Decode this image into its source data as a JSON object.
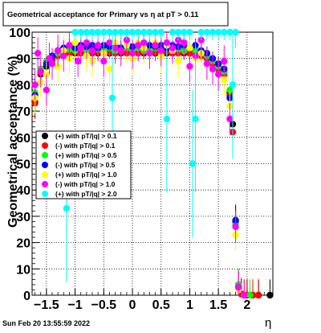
{
  "chart_data": {
    "type": "scatter",
    "title": "Geometrical acceptance for Primary vs  η at pT > 0.11",
    "xlabel": "η",
    "ylabel": "Geometrical acceptance (%)",
    "xlim": [
      -1.75,
      2.45
    ],
    "ylim": [
      0,
      100
    ],
    "x_ticks": [
      -1.5,
      -1,
      -0.5,
      0,
      0.5,
      1,
      1.5,
      2
    ],
    "x_tick_labels": [
      "−1.5",
      "−1",
      "−0.5",
      "0",
      "0.5",
      "1",
      "1.5",
      "2"
    ],
    "y_ticks": [
      0,
      10,
      20,
      30,
      40,
      50,
      60,
      70,
      80,
      90,
      100
    ],
    "y_tick_labels": [
      "0",
      "10",
      "20",
      "30",
      "40",
      "50",
      "60",
      "70",
      "80",
      "90",
      "100"
    ],
    "grid": true,
    "legend_position": "middle-left",
    "timestamp": "Sun Feb 20 13:55:59 2022",
    "series": [
      {
        "name": "(+) with pT/|q| > 0.1",
        "color": "#000000",
        "points": [
          [
            -1.7,
            73.5
          ],
          [
            -1.6,
            84
          ],
          [
            -1.5,
            87
          ],
          [
            -1.4,
            89.5
          ],
          [
            -1.3,
            91
          ],
          [
            -1.2,
            91.5
          ],
          [
            -1.1,
            92
          ],
          [
            -1.0,
            92
          ],
          [
            -0.9,
            92.5
          ],
          [
            -0.8,
            92
          ],
          [
            -0.7,
            92.5
          ],
          [
            -0.6,
            92
          ],
          [
            -0.5,
            92.5
          ],
          [
            -0.4,
            92
          ],
          [
            -0.3,
            92.5
          ],
          [
            -0.2,
            92
          ],
          [
            -0.1,
            92.5
          ],
          [
            0.0,
            92
          ],
          [
            0.1,
            92.5
          ],
          [
            0.2,
            92
          ],
          [
            0.3,
            92.5
          ],
          [
            0.4,
            92
          ],
          [
            0.5,
            92.5
          ],
          [
            0.6,
            92
          ],
          [
            0.7,
            92
          ],
          [
            0.8,
            92.5
          ],
          [
            0.9,
            92
          ],
          [
            1.0,
            92
          ],
          [
            1.1,
            92
          ],
          [
            1.2,
            91.5
          ],
          [
            1.3,
            91
          ],
          [
            1.4,
            89
          ],
          [
            1.5,
            87
          ],
          [
            1.6,
            85
          ],
          [
            1.7,
            77
          ],
          [
            1.75,
            65
          ],
          [
            1.8,
            28
          ],
          [
            1.85,
            4
          ],
          [
            1.9,
            0.5
          ],
          [
            2.0,
            0
          ],
          [
            2.1,
            0
          ],
          [
            2.2,
            0
          ],
          [
            2.4,
            0
          ]
        ]
      },
      {
        "name": "(-) with pT/|q| > 0.1",
        "color": "#ff0000",
        "points": [
          [
            -1.7,
            73
          ],
          [
            -1.6,
            84.5
          ],
          [
            -1.5,
            88
          ],
          [
            -1.4,
            90
          ],
          [
            -1.3,
            91
          ],
          [
            -1.2,
            92
          ],
          [
            -1.1,
            92
          ],
          [
            -1.0,
            92.5
          ],
          [
            -0.9,
            92
          ],
          [
            -0.8,
            92.5
          ],
          [
            -0.7,
            92
          ],
          [
            -0.6,
            92.5
          ],
          [
            -0.5,
            92
          ],
          [
            -0.4,
            92.5
          ],
          [
            -0.3,
            92
          ],
          [
            -0.2,
            92.5
          ],
          [
            -0.1,
            92
          ],
          [
            0.0,
            92.5
          ],
          [
            0.1,
            92
          ],
          [
            0.2,
            92.5
          ],
          [
            0.3,
            92
          ],
          [
            0.4,
            92.5
          ],
          [
            0.5,
            92
          ],
          [
            0.6,
            92.5
          ],
          [
            0.7,
            92
          ],
          [
            0.8,
            92
          ],
          [
            0.9,
            92.5
          ],
          [
            1.0,
            92
          ],
          [
            1.1,
            91.5
          ],
          [
            1.2,
            91
          ],
          [
            1.3,
            90
          ],
          [
            1.4,
            88
          ],
          [
            1.5,
            86
          ],
          [
            1.6,
            84
          ],
          [
            1.7,
            76
          ],
          [
            1.75,
            62
          ],
          [
            1.8,
            27
          ],
          [
            1.85,
            3.5
          ],
          [
            1.9,
            0.4
          ],
          [
            2.0,
            0
          ],
          [
            2.1,
            0
          ],
          [
            2.2,
            0
          ]
        ]
      },
      {
        "name": "(+) with pT/|q| > 0.5",
        "color": "#00ff00",
        "points": [
          [
            -1.7,
            77
          ],
          [
            -1.6,
            86
          ],
          [
            -1.5,
            89
          ],
          [
            -1.4,
            91
          ],
          [
            -1.3,
            92
          ],
          [
            -1.2,
            93
          ],
          [
            -1.1,
            93.5
          ],
          [
            -1.0,
            93
          ],
          [
            -0.9,
            94
          ],
          [
            -0.8,
            93
          ],
          [
            -0.7,
            94
          ],
          [
            -0.6,
            93.5
          ],
          [
            -0.5,
            93
          ],
          [
            -0.4,
            94
          ],
          [
            -0.3,
            93
          ],
          [
            -0.2,
            93.5
          ],
          [
            -0.1,
            94
          ],
          [
            0.0,
            93
          ],
          [
            0.1,
            94
          ],
          [
            0.2,
            93
          ],
          [
            0.3,
            93.5
          ],
          [
            0.4,
            94
          ],
          [
            0.5,
            93
          ],
          [
            0.6,
            94
          ],
          [
            0.7,
            93
          ],
          [
            0.8,
            93.5
          ],
          [
            0.9,
            93
          ],
          [
            1.0,
            94
          ],
          [
            1.1,
            93
          ],
          [
            1.2,
            92.5
          ],
          [
            1.3,
            91
          ],
          [
            1.4,
            89
          ],
          [
            1.5,
            87
          ],
          [
            1.6,
            85
          ],
          [
            1.7,
            78
          ],
          [
            1.8,
            27
          ],
          [
            1.85,
            4
          ],
          [
            1.95,
            0
          ],
          [
            2.05,
            0
          ]
        ]
      },
      {
        "name": "(-) with pT/|q| > 0.5",
        "color": "#0000ff",
        "points": [
          [
            -1.7,
            76
          ],
          [
            -1.6,
            85
          ],
          [
            -1.5,
            88
          ],
          [
            -1.4,
            91
          ],
          [
            -1.3,
            93
          ],
          [
            -1.2,
            94
          ],
          [
            -1.1,
            95
          ],
          [
            -1.0,
            94
          ],
          [
            -0.9,
            95
          ],
          [
            -0.8,
            94.5
          ],
          [
            -0.7,
            95
          ],
          [
            -0.6,
            94
          ],
          [
            -0.5,
            95
          ],
          [
            -0.4,
            94.5
          ],
          [
            -0.3,
            95
          ],
          [
            -0.2,
            94
          ],
          [
            -0.1,
            95
          ],
          [
            0.0,
            94.5
          ],
          [
            0.1,
            95
          ],
          [
            0.2,
            94
          ],
          [
            0.3,
            95
          ],
          [
            0.4,
            94.5
          ],
          [
            0.5,
            95
          ],
          [
            0.6,
            94
          ],
          [
            0.7,
            95
          ],
          [
            0.8,
            94.5
          ],
          [
            0.9,
            95
          ],
          [
            1.0,
            94
          ],
          [
            1.1,
            95
          ],
          [
            1.2,
            93
          ],
          [
            1.3,
            92
          ],
          [
            1.4,
            90
          ],
          [
            1.5,
            88
          ],
          [
            1.6,
            86
          ],
          [
            1.7,
            75
          ],
          [
            1.8,
            28.5
          ],
          [
            1.85,
            3
          ],
          [
            1.95,
            0
          ]
        ]
      },
      {
        "name": "(+) with pT/|q| > 1.0",
        "color": "#ffff00",
        "points": [
          [
            -1.7,
            75
          ],
          [
            -1.6,
            81
          ],
          [
            -1.5,
            84
          ],
          [
            -1.4,
            88
          ],
          [
            -1.3,
            87
          ],
          [
            -1.2,
            93
          ],
          [
            -1.1,
            90
          ],
          [
            -1.0,
            96
          ],
          [
            -0.9,
            94
          ],
          [
            -0.8,
            91
          ],
          [
            -0.7,
            89
          ],
          [
            -0.6,
            95
          ],
          [
            -0.5,
            92
          ],
          [
            -0.4,
            86
          ],
          [
            -0.3,
            96
          ],
          [
            -0.2,
            93
          ],
          [
            -0.1,
            95
          ],
          [
            0.0,
            90
          ],
          [
            0.1,
            96
          ],
          [
            0.2,
            94
          ],
          [
            0.3,
            92
          ],
          [
            0.4,
            96
          ],
          [
            0.5,
            91
          ],
          [
            0.6,
            95
          ],
          [
            0.7,
            93
          ],
          [
            0.8,
            89
          ],
          [
            0.9,
            96
          ],
          [
            1.0,
            94
          ],
          [
            1.1,
            90
          ],
          [
            1.2,
            92
          ],
          [
            1.3,
            88
          ],
          [
            1.4,
            86
          ],
          [
            1.5,
            84
          ],
          [
            1.6,
            82
          ],
          [
            1.7,
            72
          ],
          [
            1.8,
            23
          ],
          [
            1.85,
            2
          ],
          [
            1.95,
            0
          ]
        ]
      },
      {
        "name": "(-) with pT/|q| > 1.0",
        "color": "#ff00ff",
        "points": [
          [
            -1.7,
            80
          ],
          [
            -1.65,
            92
          ],
          [
            -1.6,
            85
          ],
          [
            -1.5,
            78
          ],
          [
            -1.45,
            90
          ],
          [
            -1.4,
            88
          ],
          [
            -1.3,
            93
          ],
          [
            -1.2,
            91
          ],
          [
            -1.1,
            95
          ],
          [
            -0.95,
            89
          ],
          [
            -0.9,
            94
          ],
          [
            -0.8,
            96
          ],
          [
            -0.7,
            93
          ],
          [
            -0.6,
            95
          ],
          [
            -0.5,
            89
          ],
          [
            -0.4,
            96
          ],
          [
            -0.3,
            94
          ],
          [
            -0.2,
            93
          ],
          [
            -0.1,
            97
          ],
          [
            0.0,
            92
          ],
          [
            0.1,
            95
          ],
          [
            0.2,
            96
          ],
          [
            0.3,
            92
          ],
          [
            0.4,
            95
          ],
          [
            0.5,
            93
          ],
          [
            0.6,
            96
          ],
          [
            0.7,
            94
          ],
          [
            0.8,
            97
          ],
          [
            0.9,
            96
          ],
          [
            1.0,
            87
          ],
          [
            1.1,
            91
          ],
          [
            1.2,
            97
          ],
          [
            1.3,
            88
          ],
          [
            1.4,
            86
          ],
          [
            1.5,
            84
          ],
          [
            1.6,
            89
          ],
          [
            1.7,
            67
          ],
          [
            1.8,
            26
          ],
          [
            1.85,
            3
          ],
          [
            1.95,
            0
          ]
        ]
      },
      {
        "name": "(+) with pT/|q| > 2.0",
        "color": "#00ffff",
        "points": [
          [
            -1.15,
            33
          ],
          [
            -1.0,
            100
          ],
          [
            -0.9,
            100
          ],
          [
            -0.8,
            100
          ],
          [
            -0.7,
            100
          ],
          [
            -0.6,
            100
          ],
          [
            -0.5,
            100
          ],
          [
            -0.4,
            100
          ],
          [
            -0.35,
            75
          ],
          [
            -0.3,
            100
          ],
          [
            -0.2,
            100
          ],
          [
            -0.1,
            100
          ],
          [
            0.0,
            100
          ],
          [
            0.1,
            100
          ],
          [
            0.2,
            100
          ],
          [
            0.3,
            100
          ],
          [
            0.4,
            100
          ],
          [
            0.5,
            100
          ],
          [
            0.6,
            67
          ],
          [
            0.7,
            100
          ],
          [
            0.8,
            100
          ],
          [
            0.9,
            100
          ],
          [
            1.0,
            100
          ],
          [
            1.05,
            50
          ],
          [
            1.1,
            67
          ],
          [
            1.2,
            100
          ],
          [
            1.3,
            100
          ],
          [
            1.4,
            100
          ],
          [
            1.5,
            100
          ],
          [
            1.6,
            100
          ],
          [
            1.7,
            100
          ],
          [
            1.75,
            80
          ],
          [
            1.8,
            100
          ]
        ]
      }
    ]
  }
}
